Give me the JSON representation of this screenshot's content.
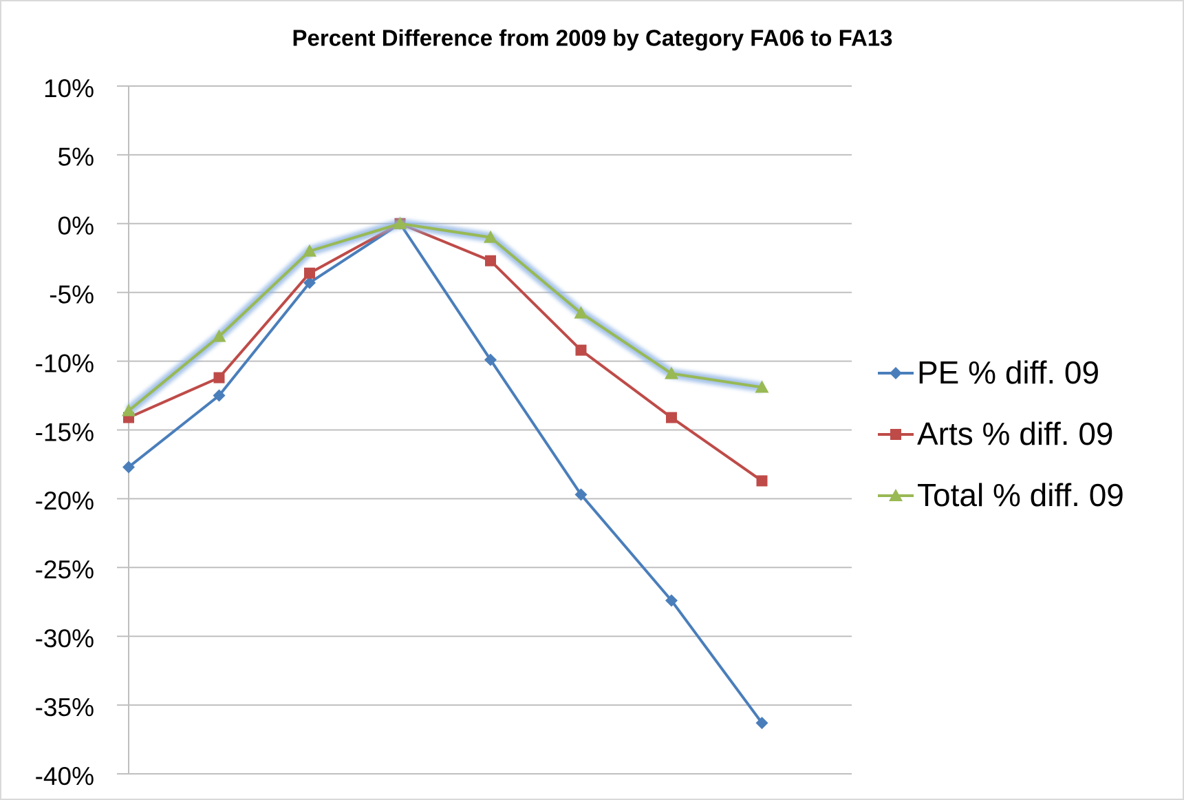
{
  "chart_data": {
    "type": "line",
    "title": "Percent Difference from 2009 by Category FA06 to FA13",
    "categories": [
      null,
      null,
      null,
      null,
      null,
      null,
      null,
      null
    ],
    "series": [
      {
        "name": "PE % diff. 09",
        "color": "#4a7ebb",
        "marker": "diamond",
        "values": [
          -17.7,
          -12.5,
          -4.3,
          0,
          -9.9,
          -19.7,
          -27.4,
          -36.3
        ]
      },
      {
        "name": "Arts % diff. 09",
        "color": "#be4b48",
        "marker": "square",
        "values": [
          -14.1,
          -11.2,
          -3.6,
          0,
          -2.7,
          -9.2,
          -14.1,
          -18.7
        ]
      },
      {
        "name": "Total % diff. 09",
        "color": "#98b954",
        "marker": "triangle",
        "glow": true,
        "values": [
          -13.6,
          -8.2,
          -2.0,
          0,
          -1.0,
          -6.5,
          -10.9,
          -11.9
        ]
      }
    ],
    "ylim": [
      -40,
      10
    ],
    "yticks": [
      {
        "value": 10,
        "label": "10%"
      },
      {
        "value": 5,
        "label": "5%"
      },
      {
        "value": 0,
        "label": "0%"
      },
      {
        "value": -5,
        "label": "-5%"
      },
      {
        "value": -10,
        "label": "-10%"
      },
      {
        "value": -15,
        "label": "-15%"
      },
      {
        "value": -20,
        "label": "-20%"
      },
      {
        "value": -25,
        "label": "-25%"
      },
      {
        "value": -30,
        "label": "-30%"
      },
      {
        "value": -35,
        "label": "-35%"
      },
      {
        "value": -40,
        "label": "-40%"
      }
    ],
    "grid": true,
    "legend": "right"
  }
}
